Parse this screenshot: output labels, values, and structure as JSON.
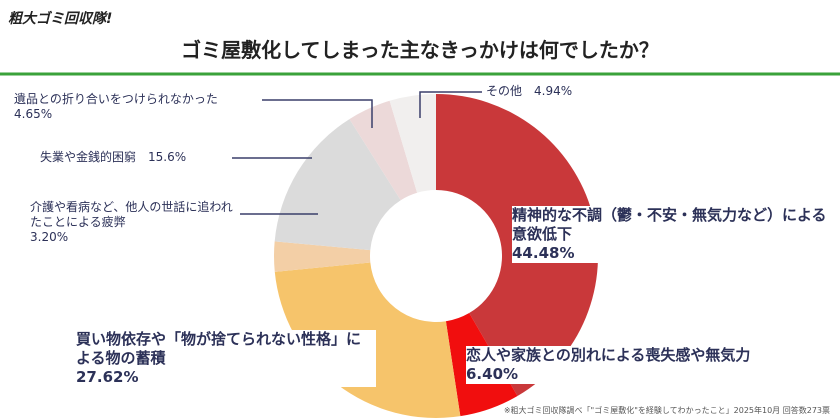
{
  "brand": "粗大ゴミ回収隊!",
  "chart_data": {
    "type": "pie",
    "title": "ゴミ屋敷化してしまった主なきっかけは何でしたか？",
    "categories": [
      "精神的な不調（鬱・不安・無気力など）による意欲低下",
      "恋人や家族との別れによる喪失感や無気力",
      "買い物依存や「物が捨てられない性格」による物の蓄積",
      "介護や看病など、他人の世話に追われたことによる疲弊",
      "失業や金銭的困窮",
      "遺品との折り合いをつけられなかった",
      "その他"
    ],
    "values": [
      44.48,
      6.4,
      27.62,
      3.2,
      15.6,
      4.65,
      4.94
    ],
    "value_labels": [
      "44.48%",
      "6.40%",
      "27.62%",
      "3.20%",
      "15.6%",
      "4.65%",
      "4.94%"
    ],
    "colors": [
      "#c9383a",
      "#f10e0e",
      "#f6c46b",
      "#f3cfa6",
      "#dbdbdb",
      "#ecd9d9",
      "#f1efee"
    ],
    "source": "※粗大ゴミ回収隊調べ「\"ゴミ屋敷化\"を経験してわかったこと」2025年10月 回答数273票"
  }
}
